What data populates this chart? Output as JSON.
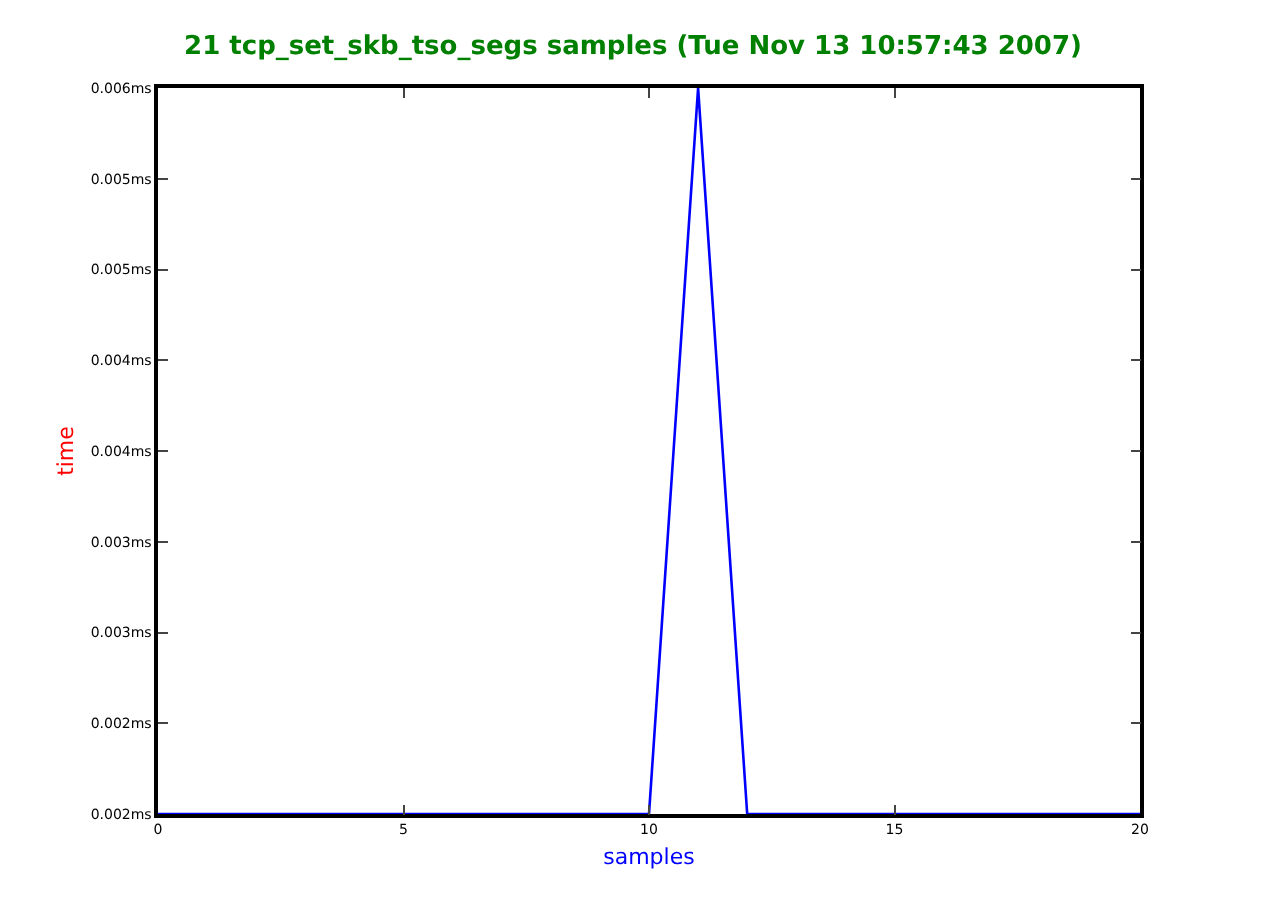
{
  "chart_data": {
    "type": "line",
    "title": "21 tcp_set_skb_tso_segs samples (Tue Nov 13 10:57:43 2007)",
    "xlabel": "samples",
    "ylabel": "time",
    "x": [
      0,
      1,
      2,
      3,
      4,
      5,
      6,
      7,
      8,
      9,
      10,
      11,
      12,
      13,
      14,
      15,
      16,
      17,
      18,
      19,
      20
    ],
    "series": [
      {
        "color": "#0000ff",
        "values": [
          0.002,
          0.002,
          0.002,
          0.002,
          0.002,
          0.002,
          0.002,
          0.002,
          0.002,
          0.002,
          0.002,
          0.006,
          0.002,
          0.002,
          0.002,
          0.002,
          0.002,
          0.002,
          0.002,
          0.002,
          0.002
        ]
      }
    ],
    "xlim": [
      0,
      20
    ],
    "xticks": [
      0,
      5,
      10,
      15,
      20
    ],
    "ylim": [
      0.002,
      0.006
    ],
    "yticks": [
      {
        "value": 0.002,
        "label": "0.002ms"
      },
      {
        "value": 0.0025,
        "label": "0.002ms"
      },
      {
        "value": 0.003,
        "label": "0.003ms"
      },
      {
        "value": 0.0035,
        "label": "0.003ms"
      },
      {
        "value": 0.004,
        "label": "0.004ms"
      },
      {
        "value": 0.0045,
        "label": "0.004ms"
      },
      {
        "value": 0.005,
        "label": "0.005ms"
      },
      {
        "value": 0.0055,
        "label": "0.005ms"
      },
      {
        "value": 0.006,
        "label": "0.006ms"
      }
    ],
    "marker": "none",
    "line_style": "solid"
  }
}
